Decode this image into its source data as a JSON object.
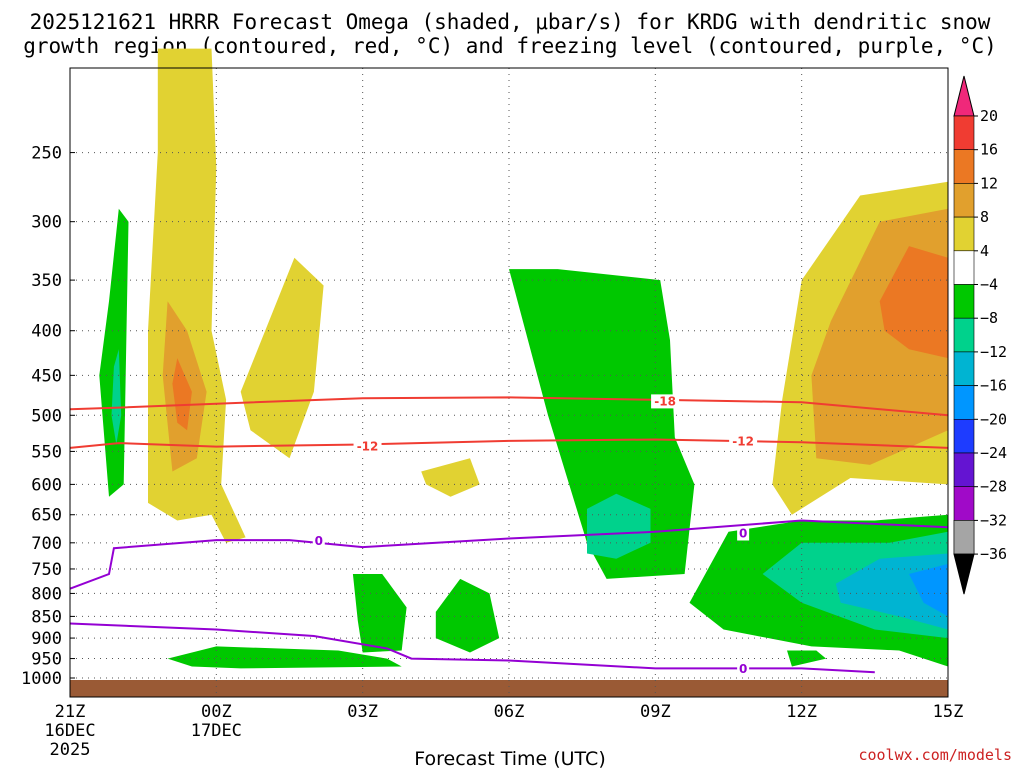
{
  "chart_data": {
    "type": "time-height contour",
    "title_line1": "2025121621 HRRR Forecast Omega (shaded, μbar/s) for KRDG with dendritic snow",
    "title_line2": "growth region (contoured, red, °C) and freezing level (contoured, purple, °C)",
    "xlabel": "Forecast Time (UTC)",
    "credit": "coolwx.com/models",
    "x_ticks": [
      {
        "hour": 0,
        "label": "21Z",
        "sub1": "16DEC",
        "sub2": "2025"
      },
      {
        "hour": 3,
        "label": "00Z",
        "sub1": "17DEC",
        "sub2": ""
      },
      {
        "hour": 6,
        "label": "03Z",
        "sub1": "",
        "sub2": ""
      },
      {
        "hour": 9,
        "label": "06Z",
        "sub1": "",
        "sub2": ""
      },
      {
        "hour": 12,
        "label": "09Z",
        "sub1": "",
        "sub2": ""
      },
      {
        "hour": 15,
        "label": "12Z",
        "sub1": "",
        "sub2": ""
      },
      {
        "hour": 18,
        "label": "15Z",
        "sub1": "",
        "sub2": ""
      }
    ],
    "x_range_hours": [
      0,
      18
    ],
    "y_range_hPa": [
      1000,
      200
    ],
    "y_ticks": [
      250,
      300,
      350,
      400,
      450,
      500,
      550,
      600,
      650,
      700,
      750,
      800,
      850,
      900,
      950,
      1000
    ],
    "colorbar": {
      "labels": [
        "20",
        "16",
        "12",
        "8",
        "4",
        "−4",
        "−8",
        "−12",
        "−16",
        "−20",
        "−24",
        "−28",
        "−32",
        "−36"
      ],
      "colors": [
        "#f0285a",
        "#f03c32",
        "#eb7823",
        "#e1a02d",
        "#e1d232",
        "#ffffff",
        "#00c800",
        "#00d28c",
        "#00b4d2",
        "#0096ff",
        "#1e3cff",
        "#6414d2",
        "#a00ac8",
        "#a5a5a5"
      ]
    },
    "contours": [
      {
        "name": "dgz-minus18",
        "label": "-18",
        "color": "#f03c32",
        "points": [
          [
            0,
            492
          ],
          [
            1,
            490
          ],
          [
            3,
            485
          ],
          [
            6,
            478
          ],
          [
            9,
            477
          ],
          [
            12,
            480
          ],
          [
            15,
            483
          ],
          [
            18,
            500
          ]
        ]
      },
      {
        "name": "dgz-minus12",
        "label": "-12",
        "color": "#f03c32",
        "points": [
          [
            0,
            545
          ],
          [
            1,
            538
          ],
          [
            3,
            543
          ],
          [
            6,
            540
          ],
          [
            9,
            535
          ],
          [
            12,
            533
          ],
          [
            15,
            537
          ],
          [
            18,
            545
          ]
        ]
      },
      {
        "name": "freezing-level-upper",
        "label": "0",
        "color": "#9400d3",
        "points": [
          [
            0,
            790
          ],
          [
            0.8,
            760
          ],
          [
            0.9,
            710
          ],
          [
            3,
            695
          ],
          [
            4.5,
            695
          ],
          [
            6,
            708
          ],
          [
            9,
            692
          ],
          [
            12,
            680
          ],
          [
            15,
            660
          ],
          [
            18,
            672
          ]
        ]
      },
      {
        "name": "freezing-level-lower",
        "label": "0",
        "color": "#9400d3",
        "points": [
          [
            0,
            866
          ],
          [
            3,
            880
          ],
          [
            5,
            895
          ],
          [
            6.5,
            925
          ],
          [
            7,
            950
          ],
          [
            9,
            955
          ],
          [
            12,
            975
          ],
          [
            15,
            975
          ],
          [
            16.5,
            985
          ]
        ]
      }
    ],
    "contour_labels": [
      {
        "text": "-18",
        "hour": 12.2,
        "p": 482,
        "color": "#f03c32"
      },
      {
        "text": "-12",
        "hour": 6.1,
        "p": 543,
        "color": "#f03c32"
      },
      {
        "text": "-12",
        "hour": 13.8,
        "p": 536,
        "color": "#f03c32"
      },
      {
        "text": "0",
        "hour": 5.1,
        "p": 697,
        "color": "#9400d3"
      },
      {
        "text": "0",
        "hour": 13.8,
        "p": 683,
        "color": "#9400d3"
      },
      {
        "text": "0",
        "hour": 13.8,
        "p": 976,
        "color": "#9400d3"
      }
    ],
    "shaded_regions": [
      {
        "name": "yellow-column",
        "bin": "4 to 8",
        "color": "#e1d232",
        "points": [
          [
            1.8,
            190
          ],
          [
            2.9,
            190
          ],
          [
            3.0,
            260
          ],
          [
            2.9,
            400
          ],
          [
            3.2,
            480
          ],
          [
            3.1,
            600
          ],
          [
            3.6,
            690
          ],
          [
            3.2,
            700
          ],
          [
            2.9,
            650
          ],
          [
            2.2,
            660
          ],
          [
            1.6,
            630
          ],
          [
            1.6,
            400
          ],
          [
            1.8,
            250
          ]
        ]
      },
      {
        "name": "yellow-hump",
        "bin": "4 to 8",
        "color": "#e1d232",
        "points": [
          [
            3.5,
            470
          ],
          [
            4.6,
            330
          ],
          [
            5.2,
            355
          ],
          [
            5.0,
            470
          ],
          [
            4.5,
            560
          ],
          [
            3.7,
            520
          ]
        ]
      },
      {
        "name": "yellow-blob-mid",
        "bin": "4 to 8",
        "color": "#e1d232",
        "points": [
          [
            7.2,
            580
          ],
          [
            8.2,
            560
          ],
          [
            8.4,
            600
          ],
          [
            7.8,
            620
          ],
          [
            7.3,
            600
          ]
        ]
      },
      {
        "name": "orange-core-left",
        "bin": "8 to 12",
        "color": "#e1a02d",
        "points": [
          [
            2.0,
            370
          ],
          [
            2.4,
            400
          ],
          [
            2.8,
            470
          ],
          [
            2.6,
            560
          ],
          [
            2.1,
            580
          ],
          [
            1.9,
            450
          ]
        ]
      },
      {
        "name": "red-core-left",
        "bin": "12 to 16",
        "color": "#eb7823",
        "points": [
          [
            2.2,
            430
          ],
          [
            2.5,
            470
          ],
          [
            2.4,
            520
          ],
          [
            2.2,
            510
          ],
          [
            2.1,
            460
          ]
        ]
      },
      {
        "name": "yellow-right",
        "bin": "4 to 8",
        "color": "#e1d232",
        "points": [
          [
            15.0,
            350
          ],
          [
            16.2,
            280
          ],
          [
            18,
            270
          ],
          [
            18,
            600
          ],
          [
            16,
            590
          ],
          [
            14.8,
            650
          ],
          [
            14.4,
            600
          ],
          [
            14.6,
            480
          ]
        ]
      },
      {
        "name": "orange-right",
        "bin": "8 to 12",
        "color": "#e1a02d",
        "points": [
          [
            15.6,
            390
          ],
          [
            16.6,
            300
          ],
          [
            18,
            290
          ],
          [
            18,
            520
          ],
          [
            16.4,
            570
          ],
          [
            15.3,
            560
          ],
          [
            15.2,
            450
          ]
        ]
      },
      {
        "name": "red-right",
        "bin": "12 to 16",
        "color": "#eb7823",
        "points": [
          [
            16.6,
            370
          ],
          [
            17.2,
            320
          ],
          [
            18,
            330
          ],
          [
            18,
            430
          ],
          [
            17.2,
            420
          ],
          [
            16.7,
            400
          ]
        ]
      },
      {
        "name": "green-left-spike",
        "bin": "-4 to -8",
        "color": "#00c800",
        "points": [
          [
            0.8,
            370
          ],
          [
            1.0,
            290
          ],
          [
            1.2,
            300
          ],
          [
            1.1,
            600
          ],
          [
            0.8,
            620
          ],
          [
            0.6,
            450
          ]
        ]
      },
      {
        "name": "cyan-left-spike",
        "bin": "-8 to -12",
        "color": "#00d28c",
        "points": [
          [
            0.9,
            440
          ],
          [
            1.0,
            420
          ],
          [
            1.05,
            500
          ],
          [
            0.95,
            540
          ],
          [
            0.85,
            500
          ]
        ]
      },
      {
        "name": "green-mid-tower",
        "bin": "-4 to -8",
        "color": "#00c800",
        "points": [
          [
            9.0,
            340
          ],
          [
            10.0,
            340
          ],
          [
            12.1,
            350
          ],
          [
            12.3,
            410
          ],
          [
            12.4,
            530
          ],
          [
            12.8,
            600
          ],
          [
            12.6,
            760
          ],
          [
            11,
            770
          ],
          [
            10.6,
            700
          ],
          [
            9.8,
            500
          ]
        ]
      },
      {
        "name": "cyan-mid-tower",
        "bin": "-8 to -12",
        "color": "#00d28c",
        "points": [
          [
            10.6,
            640
          ],
          [
            11.2,
            615
          ],
          [
            11.9,
            640
          ],
          [
            11.9,
            700
          ],
          [
            11.2,
            730
          ],
          [
            10.6,
            720
          ]
        ]
      },
      {
        "name": "green-bottom-left",
        "bin": "-4 to -8",
        "color": "#00c800",
        "points": [
          [
            2.0,
            950
          ],
          [
            3.0,
            920
          ],
          [
            5.5,
            930
          ],
          [
            6.5,
            950
          ],
          [
            6.8,
            970
          ],
          [
            3.5,
            975
          ],
          [
            2.5,
            970
          ]
        ]
      },
      {
        "name": "green-bottom-mid",
        "bin": "-4 to -8",
        "color": "#00c800",
        "points": [
          [
            5.8,
            760
          ],
          [
            6.4,
            760
          ],
          [
            6.9,
            830
          ],
          [
            6.8,
            930
          ],
          [
            6.0,
            935
          ],
          [
            5.9,
            860
          ]
        ]
      },
      {
        "name": "green-bottom-mid2",
        "bin": "-4 to -8",
        "color": "#00c800",
        "points": [
          [
            7.5,
            840
          ],
          [
            8.0,
            770
          ],
          [
            8.6,
            800
          ],
          [
            8.8,
            900
          ],
          [
            8.2,
            935
          ],
          [
            7.5,
            900
          ]
        ]
      },
      {
        "name": "green-bottom-right",
        "bin": "-4 to -8",
        "color": "#00c800",
        "points": [
          [
            12.7,
            820
          ],
          [
            13.5,
            680
          ],
          [
            15.0,
            660
          ],
          [
            16.5,
            660
          ],
          [
            18,
            650
          ],
          [
            18,
            970
          ],
          [
            17,
            930
          ],
          [
            15.2,
            920
          ],
          [
            13.4,
            880
          ]
        ]
      },
      {
        "name": "cyan-bottom-right",
        "bin": "-8 to -12",
        "color": "#00d28c",
        "points": [
          [
            14.2,
            760
          ],
          [
            15.0,
            700
          ],
          [
            16.8,
            700
          ],
          [
            18,
            680
          ],
          [
            18,
            900
          ],
          [
            16.5,
            880
          ],
          [
            15.0,
            820
          ]
        ]
      },
      {
        "name": "blue-bottom-right",
        "bin": "-12 to -16",
        "color": "#00b4d2",
        "points": [
          [
            15.7,
            780
          ],
          [
            16.6,
            730
          ],
          [
            18,
            720
          ],
          [
            18,
            880
          ],
          [
            17.0,
            850
          ],
          [
            15.8,
            820
          ]
        ]
      },
      {
        "name": "darkblue-bottom-right",
        "bin": "-16 to -20",
        "color": "#0096ff",
        "points": [
          [
            17.2,
            760
          ],
          [
            18,
            740
          ],
          [
            18,
            850
          ],
          [
            17.5,
            820
          ]
        ]
      },
      {
        "name": "green-small-blob",
        "bin": "-4 to -8",
        "color": "#00c800",
        "points": [
          [
            14.7,
            930
          ],
          [
            15.3,
            930
          ],
          [
            15.5,
            950
          ],
          [
            14.8,
            970
          ]
        ]
      }
    ],
    "ground": {
      "color": "#9a5a35",
      "from_hPa": 1000
    }
  }
}
